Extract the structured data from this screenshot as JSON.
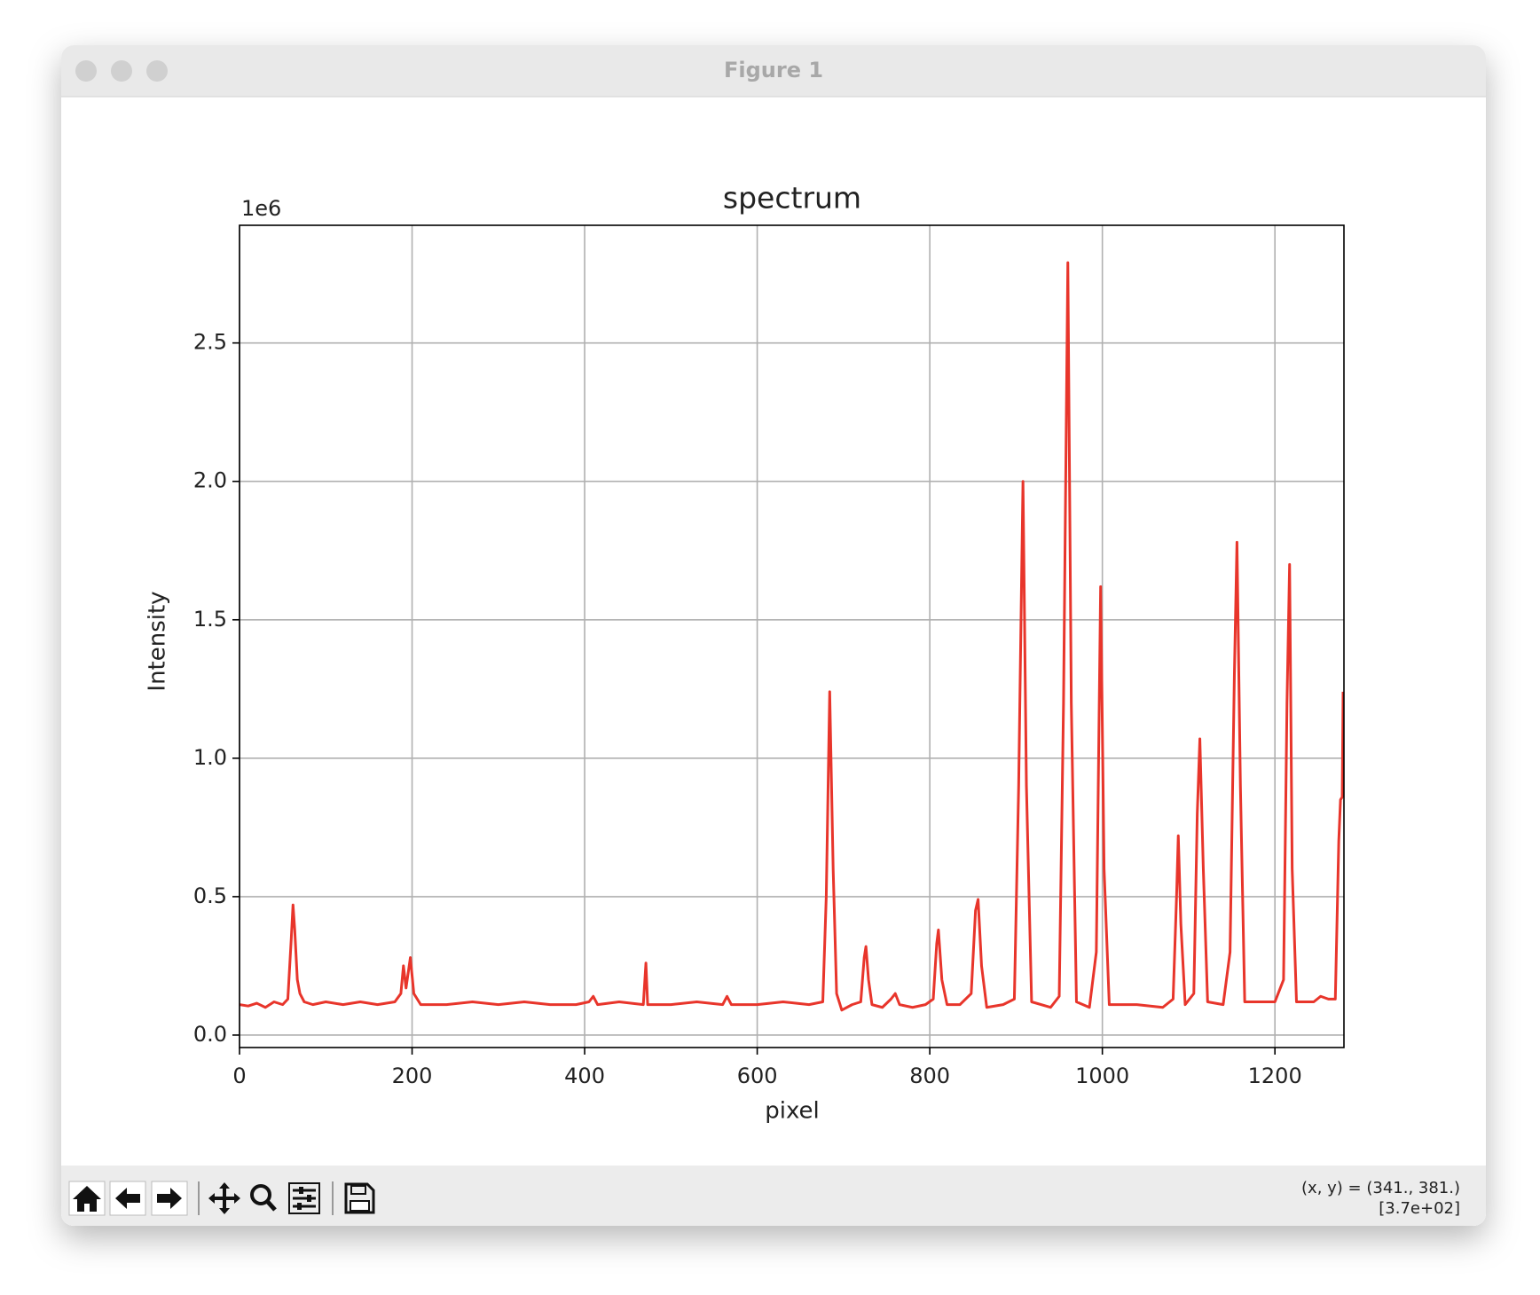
{
  "window": {
    "title": "Figure 1"
  },
  "status": [
    "(x, y) = (341., 381.)",
    "[3.7e+02]"
  ],
  "chart_data": {
    "type": "line",
    "title": "spectrum",
    "x_label": "pixel",
    "y_label": "Intensity",
    "y_offset": "1e6",
    "x": [
      0,
      10,
      20,
      30,
      40,
      50,
      56,
      60,
      62,
      64,
      67,
      70,
      75,
      85,
      100,
      120,
      140,
      160,
      180,
      187,
      190,
      193,
      198,
      202,
      210,
      240,
      270,
      300,
      330,
      360,
      390,
      405,
      410,
      415,
      440,
      468,
      471,
      473,
      500,
      530,
      560,
      565,
      570,
      600,
      630,
      660,
      676,
      680,
      684,
      688,
      692,
      698,
      710,
      720,
      724,
      726,
      729,
      733,
      745,
      755,
      760,
      765,
      780,
      795,
      804,
      808,
      810,
      814,
      820,
      835,
      848,
      853,
      856,
      860,
      866,
      885,
      898,
      903,
      908,
      912,
      918,
      940,
      950,
      955,
      960,
      964,
      970,
      985,
      993,
      998,
      1002,
      1008,
      1040,
      1070,
      1082,
      1086,
      1088,
      1091,
      1096,
      1106,
      1110,
      1113,
      1117,
      1122,
      1140,
      1148,
      1153,
      1156,
      1160,
      1165,
      1200,
      1210,
      1214,
      1217,
      1220,
      1225,
      1245,
      1253,
      1262,
      1270,
      1274,
      1276,
      1278,
      1279
    ],
    "values": [
      0.11,
      0.105,
      0.115,
      0.1,
      0.12,
      0.11,
      0.13,
      0.35,
      0.47,
      0.38,
      0.2,
      0.15,
      0.12,
      0.11,
      0.12,
      0.11,
      0.12,
      0.11,
      0.12,
      0.15,
      0.25,
      0.17,
      0.28,
      0.15,
      0.11,
      0.11,
      0.12,
      0.11,
      0.12,
      0.11,
      0.11,
      0.12,
      0.14,
      0.11,
      0.12,
      0.11,
      0.26,
      0.11,
      0.11,
      0.12,
      0.11,
      0.14,
      0.11,
      0.11,
      0.12,
      0.11,
      0.12,
      0.5,
      1.24,
      0.6,
      0.15,
      0.09,
      0.11,
      0.12,
      0.28,
      0.32,
      0.2,
      0.11,
      0.1,
      0.13,
      0.15,
      0.11,
      0.1,
      0.11,
      0.13,
      0.33,
      0.38,
      0.2,
      0.11,
      0.11,
      0.15,
      0.45,
      0.49,
      0.25,
      0.1,
      0.11,
      0.13,
      0.9,
      2.0,
      0.9,
      0.12,
      0.1,
      0.14,
      1.2,
      2.79,
      1.2,
      0.12,
      0.1,
      0.3,
      1.62,
      0.6,
      0.11,
      0.11,
      0.1,
      0.13,
      0.5,
      0.72,
      0.4,
      0.11,
      0.15,
      0.8,
      1.07,
      0.6,
      0.12,
      0.11,
      0.3,
      1.3,
      1.78,
      0.9,
      0.12,
      0.12,
      0.2,
      1.2,
      1.7,
      0.6,
      0.12,
      0.12,
      0.14,
      0.13,
      0.13,
      0.7,
      0.85,
      0.86,
      1.24
    ],
    "color": "#e8352b",
    "xlim": [
      0,
      1280
    ],
    "ylim": [
      -0.045,
      2.925
    ],
    "xticks": [
      0,
      200,
      400,
      600,
      800,
      1000,
      1200
    ],
    "yticks": [
      {
        "value": 0,
        "label": "0.0"
      },
      0.5,
      {
        "value": 1,
        "label": "1.0"
      },
      1.5,
      {
        "value": 2,
        "label": "2.0"
      },
      2.5
    ],
    "grid": true
  }
}
